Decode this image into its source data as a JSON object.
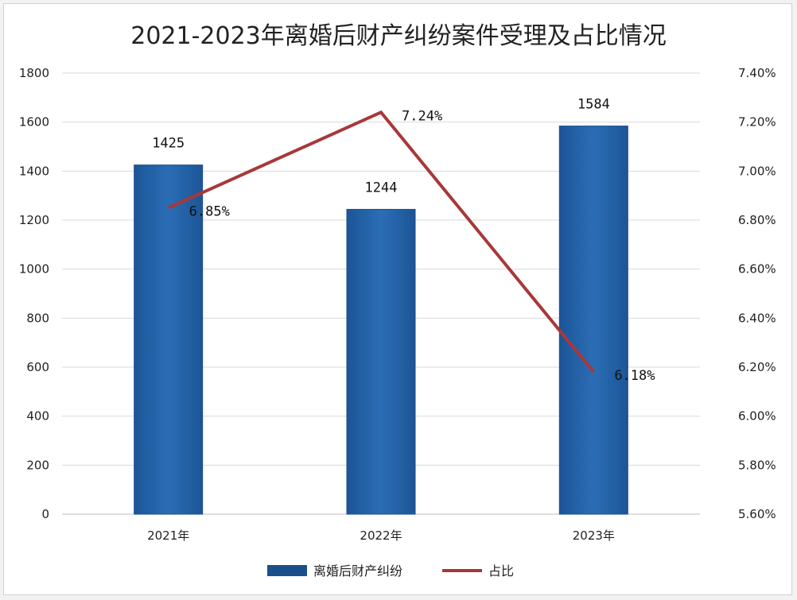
{
  "chart_data": {
    "type": "bar+line",
    "title": "2021-2023年离婚后财产纠纷案件受理及占比情况",
    "categories": [
      "2021年",
      "2022年",
      "2023年"
    ],
    "series": [
      {
        "name": "离婚后财产纠纷",
        "type": "bar",
        "axis": "left",
        "values": [
          1425,
          1244,
          1584
        ],
        "data_labels": [
          "1425",
          "1244",
          "1584"
        ]
      },
      {
        "name": "占比",
        "type": "line",
        "axis": "right",
        "values": [
          6.85,
          7.24,
          6.18
        ],
        "data_labels": [
          "6.85%",
          "7.24%",
          "6.18%"
        ]
      }
    ],
    "left_axis": {
      "ylim": [
        0,
        1800
      ],
      "ticks": [
        "0",
        "200",
        "400",
        "600",
        "800",
        "1000",
        "1200",
        "1400",
        "1600",
        "1800"
      ]
    },
    "right_axis": {
      "ylim": [
        5.6,
        7.4
      ],
      "ticks": [
        "5.60%",
        "5.80%",
        "6.00%",
        "6.20%",
        "6.40%",
        "6.60%",
        "6.80%",
        "7.00%",
        "7.20%",
        "7.40%"
      ]
    },
    "grid": true,
    "legend": "bottom",
    "colors": {
      "bar": "#2363a8",
      "bar_dark": "#1a4f8c",
      "line": "#a83838",
      "grid": "#d9d9d9"
    }
  }
}
